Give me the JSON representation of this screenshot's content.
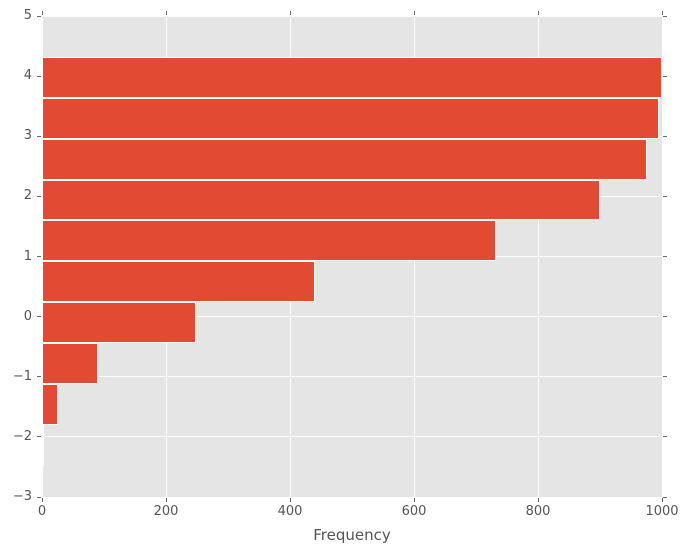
{
  "chart_data": {
    "type": "bar",
    "subtype": "horizontal-histogram",
    "title": "",
    "xlabel": "Frequency",
    "ylabel": "",
    "xlim": [
      0,
      1000
    ],
    "ylim": [
      -3,
      5
    ],
    "grid": true,
    "legend": "none",
    "x_ticks": [
      {
        "value": 0,
        "label": "0"
      },
      {
        "value": 200,
        "label": "200"
      },
      {
        "value": 400,
        "label": "400"
      },
      {
        "value": 600,
        "label": "600"
      },
      {
        "value": 800,
        "label": "800"
      },
      {
        "value": 1000,
        "label": "1000"
      }
    ],
    "y_ticks": [
      {
        "value": 5,
        "label": "5"
      },
      {
        "value": 4,
        "label": "4"
      },
      {
        "value": 3,
        "label": "3"
      },
      {
        "value": 2,
        "label": "2"
      },
      {
        "value": 1,
        "label": "1"
      },
      {
        "value": 0,
        "label": "0"
      },
      {
        "value": -1,
        "label": "−1"
      },
      {
        "value": -2,
        "label": "−2"
      },
      {
        "value": -3,
        "label": "−3"
      }
    ],
    "bin_edges": [
      -2.48,
      -1.8,
      -1.12,
      -0.44,
      0.24,
      0.92,
      1.6,
      2.28,
      2.96,
      3.64,
      4.32
    ],
    "values": [
      4,
      25,
      90,
      248,
      441,
      733,
      900,
      975,
      995,
      1000
    ]
  },
  "colors": {
    "plot_background": "#e5e5e5",
    "figure_background": "#ffffff",
    "bar_fill": "#e24a33",
    "bar_edge": "#ffffff",
    "gridline": "#ffffff",
    "tick_mark": "#666666",
    "tick_label": "#555555"
  }
}
